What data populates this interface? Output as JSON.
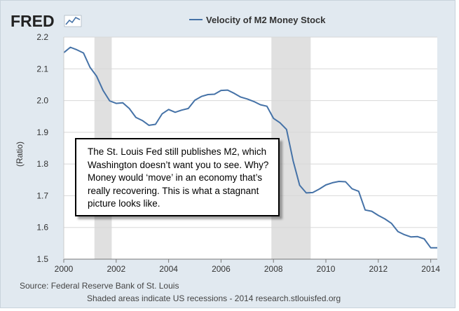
{
  "logo": {
    "text": "FRED"
  },
  "chart_data": {
    "type": "line",
    "title": "",
    "legend": {
      "label": "Velocity of M2 Money Stock",
      "placement": "top-center"
    },
    "xlabel": "",
    "ylabel": "(Ratio)",
    "xlim": [
      2000,
      2014.25
    ],
    "ylim": [
      1.5,
      2.2
    ],
    "xticks": [
      "2000",
      "2002",
      "2004",
      "2006",
      "2008",
      "2010",
      "2012",
      "2014"
    ],
    "yticks": [
      "1.5",
      "1.6",
      "1.7",
      "1.8",
      "1.9",
      "2.0",
      "2.1",
      "2.2"
    ],
    "grid": true,
    "recessions": [
      [
        2001.17,
        2001.83
      ],
      [
        2007.92,
        2009.42
      ]
    ],
    "series": [
      {
        "name": "Velocity of M2 Money Stock",
        "color": "#4572a7",
        "x": [
          2000.0,
          2000.25,
          2000.5,
          2000.75,
          2001.0,
          2001.25,
          2001.5,
          2001.75,
          2002.0,
          2002.25,
          2002.5,
          2002.75,
          2003.0,
          2003.25,
          2003.5,
          2003.75,
          2004.0,
          2004.25,
          2004.5,
          2004.75,
          2005.0,
          2005.25,
          2005.5,
          2005.75,
          2006.0,
          2006.25,
          2006.5,
          2006.75,
          2007.0,
          2007.25,
          2007.5,
          2007.75,
          2008.0,
          2008.25,
          2008.5,
          2008.75,
          2009.0,
          2009.25,
          2009.5,
          2009.75,
          2010.0,
          2010.25,
          2010.5,
          2010.75,
          2011.0,
          2011.25,
          2011.5,
          2011.75,
          2012.0,
          2012.25,
          2012.5,
          2012.75,
          2013.0,
          2013.25,
          2013.5,
          2013.75,
          2014.0,
          2014.25
        ],
        "values": [
          2.151,
          2.168,
          2.16,
          2.15,
          2.105,
          2.077,
          2.032,
          1.999,
          1.991,
          1.993,
          1.975,
          1.947,
          1.937,
          1.922,
          1.925,
          1.958,
          1.972,
          1.963,
          1.97,
          1.975,
          2.001,
          2.013,
          2.019,
          2.02,
          2.032,
          2.033,
          2.023,
          2.011,
          2.005,
          1.997,
          1.987,
          1.982,
          1.944,
          1.93,
          1.909,
          1.81,
          1.733,
          1.709,
          1.71,
          1.721,
          1.734,
          1.741,
          1.745,
          1.744,
          1.722,
          1.714,
          1.655,
          1.651,
          1.638,
          1.627,
          1.613,
          1.587,
          1.577,
          1.57,
          1.571,
          1.564,
          1.536,
          1.536
        ]
      }
    ],
    "source": "Source: Federal Reserve Bank of St. Louis",
    "note": "Shaded areas indicate US recessions - 2014 research.stlouisfed.org"
  },
  "annotation": {
    "text": "The St. Louis Fed still publishes M2, which Washington doesn’t want you to see. Why? Money would ‘move’ in an economy that’s really recovering. This is what a stagnant picture looks like."
  },
  "colors": {
    "frame_bg": "#e1e9f0",
    "plot_bg": "#ffffff",
    "recession": "#e0e0e0",
    "grid": "#d8d8d8",
    "line": "#4572a7"
  }
}
